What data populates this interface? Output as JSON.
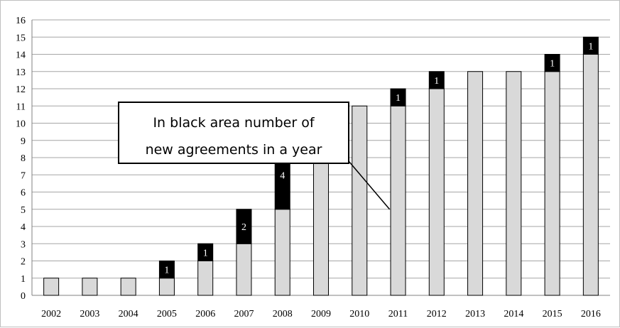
{
  "chart_data": {
    "type": "bar",
    "stacked": true,
    "categories": [
      "2002",
      "2003",
      "2004",
      "2005",
      "2006",
      "2007",
      "2008",
      "2009",
      "2010",
      "2011",
      "2012",
      "2013",
      "2014",
      "2015",
      "2016"
    ],
    "series": [
      {
        "values": [
          1,
          1,
          1,
          1,
          2,
          3,
          5,
          8,
          11,
          11,
          12,
          13,
          13,
          13,
          14
        ],
        "color": "#d9d9d9"
      },
      {
        "values": [
          0,
          0,
          0,
          1,
          1,
          2,
          4,
          0,
          0,
          1,
          1,
          0,
          0,
          1,
          1
        ],
        "color": "#000000"
      }
    ],
    "data_labels": [
      "",
      "",
      "",
      "1",
      "1",
      "2",
      "4",
      "",
      "",
      "1",
      "1",
      "",
      "",
      "1",
      "1"
    ],
    "yticks": [
      "0",
      "1",
      "2",
      "3",
      "4",
      "5",
      "6",
      "7",
      "8",
      "9",
      "10",
      "11",
      "12",
      "13",
      "14",
      "15",
      "16"
    ],
    "ylim": [
      0,
      16
    ],
    "grid": true,
    "title": "",
    "xlabel": "",
    "ylabel": ""
  },
  "annotation": {
    "lines": [
      "In black area number of",
      "new agreements in a year"
    ],
    "pointer": {
      "category": "2011",
      "value": 5
    }
  }
}
